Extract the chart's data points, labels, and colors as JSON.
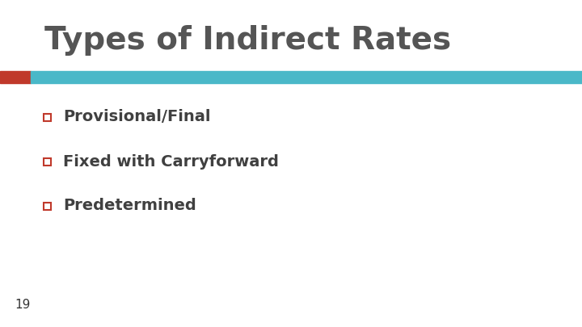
{
  "title": "Types of Indirect Rates",
  "title_color": "#555555",
  "title_fontsize": 28,
  "title_fontweight": "bold",
  "background_color": "#ffffff",
  "bar_red_color": "#c0392b",
  "bar_cyan_color": "#4ab8c8",
  "bullet_items": [
    "Provisional/Final",
    "Fixed with Carryforward",
    "Predetermined"
  ],
  "bullet_color": "#c0392b",
  "bullet_text_color": "#404040",
  "bullet_fontsize": 14,
  "bullet_fontweight": "bold",
  "page_number": "19",
  "page_number_fontsize": 11,
  "page_number_color": "#333333"
}
